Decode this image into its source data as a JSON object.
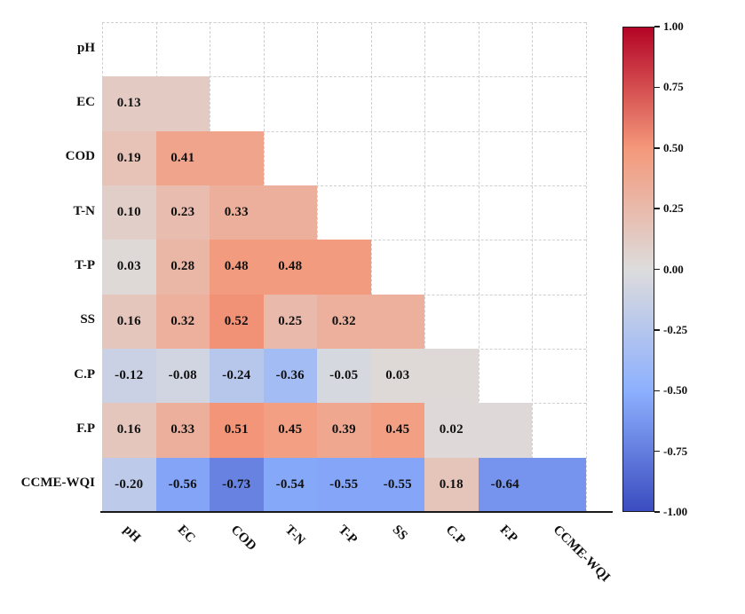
{
  "figure": {
    "background": "#ffffff",
    "axis_color": "#1a1a1a",
    "grid_color": "#cfcfcf",
    "text_color": "#111111"
  },
  "chart_data": {
    "type": "heatmap",
    "subtype": "correlation-matrix-lower-triangle",
    "title": "",
    "xlabel": "",
    "ylabel": "",
    "variables": [
      "pH",
      "EC",
      "COD",
      "T-N",
      "T-P",
      "SS",
      "C.P",
      "F.P",
      "CCME-WQI"
    ],
    "x_tick_labels": [
      "pH",
      "EC",
      "COD",
      "T-N",
      "T-P",
      "SS",
      "C.P",
      "F.P",
      "CCME-WQI"
    ],
    "y_tick_labels": [
      "pH",
      "EC",
      "COD",
      "T-N",
      "T-P",
      "SS",
      "C.P",
      "F.P",
      "CCME-WQI"
    ],
    "rows": [
      {
        "name": "EC",
        "values": [
          0.13
        ]
      },
      {
        "name": "COD",
        "values": [
          0.19,
          0.41
        ]
      },
      {
        "name": "T-N",
        "values": [
          0.1,
          0.23,
          0.33
        ]
      },
      {
        "name": "T-P",
        "values": [
          0.03,
          0.28,
          0.48,
          0.48
        ]
      },
      {
        "name": "SS",
        "values": [
          0.16,
          0.32,
          0.52,
          0.25,
          0.32
        ]
      },
      {
        "name": "C.P",
        "values": [
          -0.12,
          -0.08,
          -0.24,
          -0.36,
          -0.05,
          0.03
        ]
      },
      {
        "name": "F.P",
        "values": [
          0.16,
          0.33,
          0.51,
          0.45,
          0.39,
          0.45,
          0.02
        ]
      },
      {
        "name": "CCME-WQI",
        "values": [
          -0.2,
          -0.56,
          -0.73,
          -0.54,
          -0.55,
          -0.55,
          0.18,
          -0.64
        ]
      }
    ],
    "value_format_decimals": 2,
    "unlabeled_diagonal_cell": "repeats color of last value in row",
    "colormap": {
      "name": "coolwarm",
      "vmin": -1,
      "vmax": 1,
      "stops": [
        "#3b4cc0",
        "#8db0fe",
        "#dddcdc",
        "#f4987a",
        "#b40426"
      ]
    },
    "grid": {
      "visible": true,
      "style": "dashed"
    },
    "colorbar": {
      "position": "right",
      "tick_labels": [
        "1.00",
        "0.75",
        "0.50",
        "0.25",
        "0.00",
        "-0.25",
        "-0.50",
        "-0.75",
        "-1.00"
      ],
      "top_value": 1.0,
      "bottom_value": -1.0
    }
  }
}
